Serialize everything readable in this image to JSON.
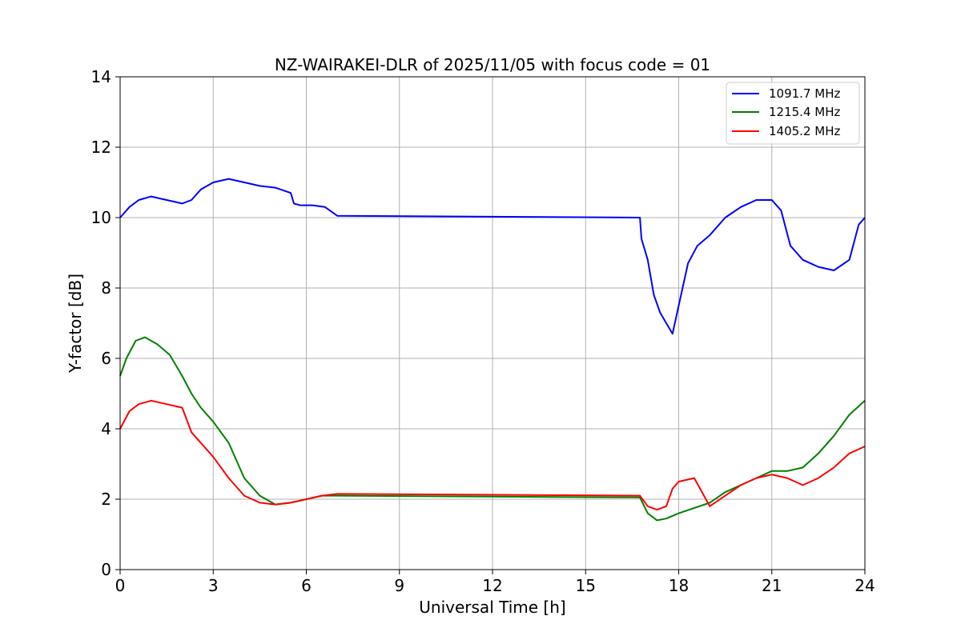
{
  "chart_data": {
    "type": "line",
    "title": "NZ-WAIRAKEI-DLR of 2025/11/05 with focus code = 01",
    "xlabel": "Universal Time [h]",
    "ylabel": "Y-factor [dB]",
    "xlim": [
      0,
      24
    ],
    "ylim": [
      0,
      14
    ],
    "xticks": [
      0,
      3,
      6,
      9,
      12,
      15,
      18,
      21,
      24
    ],
    "yticks": [
      0,
      2,
      4,
      6,
      8,
      10,
      12,
      14
    ],
    "grid": true,
    "legend_position": "top-right",
    "series": [
      {
        "name": "1091.7 MHz",
        "color": "#0000ff",
        "x": [
          0.0,
          0.3,
          0.6,
          1.0,
          1.5,
          2.0,
          2.3,
          2.6,
          3.0,
          3.5,
          4.0,
          4.5,
          5.0,
          5.5,
          5.6,
          5.8,
          6.2,
          6.6,
          7.0,
          16.75,
          16.8,
          17.0,
          17.2,
          17.4,
          17.6,
          17.8,
          18.0,
          18.3,
          18.6,
          19.0,
          19.5,
          20.0,
          20.5,
          21.0,
          21.3,
          21.6,
          22.0,
          22.5,
          23.0,
          23.5,
          23.8,
          24.0
        ],
        "y": [
          10.0,
          10.3,
          10.5,
          10.6,
          10.5,
          10.4,
          10.5,
          10.8,
          11.0,
          11.1,
          11.0,
          10.9,
          10.85,
          10.7,
          10.4,
          10.35,
          10.35,
          10.3,
          10.05,
          10.0,
          9.4,
          8.8,
          7.8,
          7.3,
          7.0,
          6.7,
          7.5,
          8.7,
          9.2,
          9.5,
          10.0,
          10.3,
          10.5,
          10.5,
          10.2,
          9.2,
          8.8,
          8.6,
          8.5,
          8.8,
          9.8,
          10.0
        ]
      },
      {
        "name": "1215.4 MHz",
        "color": "#008000",
        "x": [
          0.0,
          0.2,
          0.5,
          0.8,
          1.2,
          1.6,
          2.0,
          2.3,
          2.6,
          3.0,
          3.5,
          4.0,
          4.5,
          5.0,
          5.5,
          6.0,
          6.5,
          7.0,
          16.75,
          17.0,
          17.3,
          17.6,
          18.0,
          18.5,
          19.0,
          19.5,
          20.0,
          20.5,
          21.0,
          21.5,
          22.0,
          22.5,
          23.0,
          23.5,
          24.0
        ],
        "y": [
          5.5,
          6.0,
          6.5,
          6.6,
          6.4,
          6.1,
          5.5,
          5.0,
          4.6,
          4.2,
          3.6,
          2.6,
          2.1,
          1.85,
          1.9,
          2.0,
          2.1,
          2.1,
          2.05,
          1.6,
          1.4,
          1.45,
          1.6,
          1.75,
          1.9,
          2.2,
          2.4,
          2.6,
          2.8,
          2.8,
          2.9,
          3.3,
          3.8,
          4.4,
          4.8
        ]
      },
      {
        "name": "1405.2 MHz",
        "color": "#ff0000",
        "x": [
          0.0,
          0.3,
          0.6,
          1.0,
          1.5,
          2.0,
          2.3,
          2.6,
          3.0,
          3.5,
          4.0,
          4.5,
          5.0,
          5.5,
          6.0,
          6.5,
          7.0,
          16.75,
          17.0,
          17.3,
          17.6,
          17.8,
          18.0,
          18.5,
          19.0,
          19.5,
          20.0,
          20.5,
          21.0,
          21.5,
          22.0,
          22.5,
          23.0,
          23.5,
          24.0
        ],
        "y": [
          4.0,
          4.5,
          4.7,
          4.8,
          4.7,
          4.6,
          3.9,
          3.6,
          3.2,
          2.6,
          2.1,
          1.9,
          1.85,
          1.9,
          2.0,
          2.1,
          2.15,
          2.1,
          1.8,
          1.7,
          1.8,
          2.3,
          2.5,
          2.6,
          1.8,
          2.1,
          2.4,
          2.6,
          2.7,
          2.6,
          2.4,
          2.6,
          2.9,
          3.3,
          3.5
        ]
      }
    ]
  }
}
